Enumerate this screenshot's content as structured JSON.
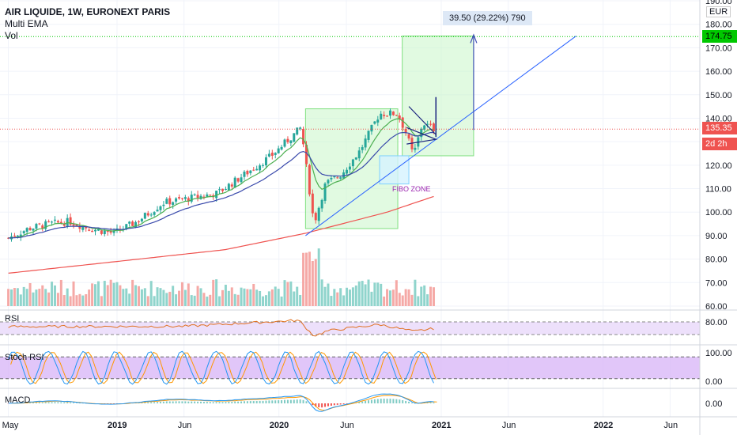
{
  "header": {
    "symbol": "AIR LIQUIDE, 1W, EURONEXT PARIS",
    "indicator1": "Multi EMA",
    "indicator2": "Vol"
  },
  "currency": "EUR",
  "price_tags": {
    "target": "174.75",
    "current": "135.35",
    "countdown": "2d 2h"
  },
  "measure_label": "39.50 (29.22%) 790",
  "fibo_label": "FIBO ZONE",
  "panes": {
    "rsi": "RSI",
    "stoch": "Stoch RSI",
    "macd": "MACD"
  },
  "colors": {
    "up": "#26a69a",
    "down": "#ef5350",
    "ema_short": "#4caf50",
    "ema_mid": "#3949ab",
    "ema_long": "#ef5350",
    "trend": "#2962ff",
    "rsi_line": "#e07020",
    "rsi_band": "#ede0fb",
    "stoch_k": "#2196f3",
    "stoch_d": "#ff9800",
    "stoch_band": "#d9b8f7",
    "macd_line": "#2196f3",
    "signal_line": "#ff9800",
    "target_line": "#00c800",
    "current_line": "#ef5350",
    "box_green": "#7fe07f"
  },
  "chart_data": {
    "type": "candlestick",
    "interval": "1W",
    "y_axis_ticks": [
      "60.00",
      "70.00",
      "80.00",
      "90.00",
      "100.00",
      "110.00",
      "120.00",
      "130.00",
      "140.00",
      "150.00",
      "160.00",
      "170.00",
      "180.00",
      "190.00"
    ],
    "y_range": [
      58,
      192
    ],
    "x_axis_ticks": [
      "May",
      "2019",
      "Jun",
      "2020",
      "Jun",
      "2021",
      "Jun",
      "2022",
      "Jun"
    ],
    "x_tick_dates": [
      "2018-05-01",
      "2019-01-01",
      "2019-06-01",
      "2020-01-01",
      "2020-06-01",
      "2021-01-01",
      "2021-06-01",
      "2022-01-01",
      "2022-06-01"
    ],
    "price_anchors": [
      [
        "2018-05-01",
        89
      ],
      [
        "2018-06-15",
        93
      ],
      [
        "2018-08-01",
        95
      ],
      [
        "2018-09-15",
        96
      ],
      [
        "2018-11-01",
        93
      ],
      [
        "2018-12-25",
        91
      ],
      [
        "2019-02-15",
        96
      ],
      [
        "2019-04-15",
        104
      ],
      [
        "2019-06-15",
        106
      ],
      [
        "2019-08-15",
        108
      ],
      [
        "2019-10-15",
        116
      ],
      [
        "2019-12-15",
        124
      ],
      [
        "2020-02-20",
        136
      ],
      [
        "2020-03-20",
        95
      ],
      [
        "2020-04-15",
        112
      ],
      [
        "2020-05-20",
        116
      ],
      [
        "2020-07-01",
        126
      ],
      [
        "2020-08-15",
        142
      ],
      [
        "2020-09-25",
        142
      ],
      [
        "2020-10-15",
        133
      ],
      [
        "2020-10-30",
        124
      ],
      [
        "2020-11-20",
        138
      ],
      [
        "2020-12-20",
        135
      ]
    ],
    "ema_long_anchors": [
      [
        "2018-05-01",
        74
      ],
      [
        "2019-01-01",
        79
      ],
      [
        "2019-09-01",
        84
      ],
      [
        "2020-03-01",
        91
      ],
      [
        "2020-09-01",
        100
      ],
      [
        "2020-12-20",
        107
      ]
    ],
    "rsi": {
      "upper_band": 70,
      "lower_band": 30,
      "axis_label": "80.00",
      "anchors": [
        [
          "2018-05-01",
          55
        ],
        [
          "2019-06-01",
          56
        ],
        [
          "2020-02-15",
          75
        ],
        [
          "2020-03-20",
          25
        ],
        [
          "2020-04-20",
          42
        ],
        [
          "2020-08-15",
          62
        ],
        [
          "2020-10-30",
          40
        ],
        [
          "2020-12-20",
          50
        ]
      ]
    },
    "stoch_rsi": {
      "upper_band": 80,
      "lower_band": 20,
      "axis_labels": [
        "100.00",
        "0.00"
      ]
    },
    "macd": {
      "axis_label": "0.00"
    },
    "drawings": {
      "target_price": 174.75,
      "current_price": 135.35,
      "measure_delta": 39.5,
      "measure_pct": 29.22,
      "measure_bars": 790
    }
  }
}
